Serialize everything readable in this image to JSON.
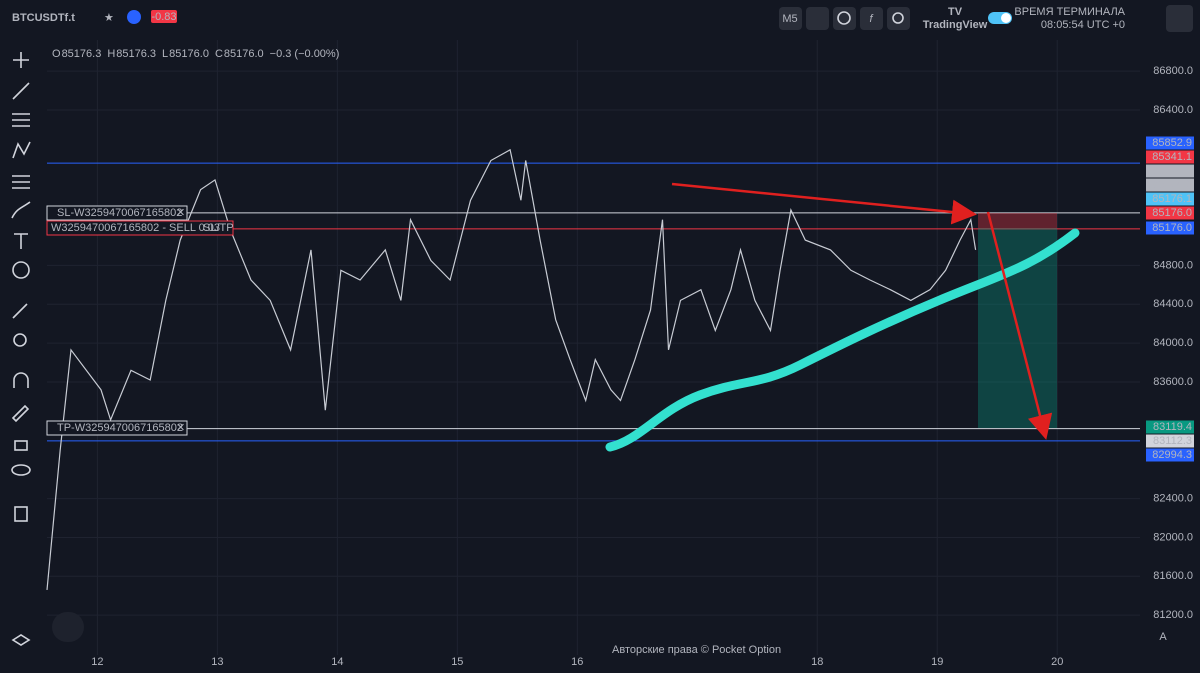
{
  "header": {
    "symbol": "BTCUSDTf.t",
    "change": "-0.83",
    "timeframe": "M5",
    "brand": "TradingView",
    "time_label": "ВРЕМЯ ТЕРМИНАЛА",
    "time": "08:05:54 UTC +0"
  },
  "ohlc": [
    {
      "key": "O",
      "value": "85176.3"
    },
    {
      "key": "H",
      "value": "85176.3"
    },
    {
      "key": "L",
      "value": "85176.0"
    },
    {
      "key": "C",
      "value": "85176.0"
    },
    {
      "key": "",
      "value": "−0.3 (−0.00%)"
    }
  ],
  "orders": {
    "sl": "SL-W3259470067165802",
    "entry": "W3259470067165802 - SELL 0.03",
    "sltp": "SL/TP",
    "tp": "TP-W3259470067165802"
  },
  "price_labels": [
    {
      "label": "85852.9",
      "color": "#2962ff"
    },
    {
      "label": "85341.1",
      "color": "#f23645"
    },
    {
      "label": "85326.7",
      "color": "#b2b5be"
    },
    {
      "label": "85176.2",
      "color": "#b2b5be"
    },
    {
      "label": "85176.1",
      "color": "#4fc3f7"
    },
    {
      "label": "85176.0",
      "color": "#f23645"
    },
    {
      "label": "85176.0",
      "color": "#2962ff"
    },
    {
      "label": "83119.4",
      "color": "#089981"
    },
    {
      "label": "83112.3",
      "color": "#d1d4dc"
    },
    {
      "label": "82994.3",
      "color": "#2962ff"
    }
  ],
  "watermark": "Авторские права © Pocket Option",
  "scale_button": "A",
  "chart_data": {
    "type": "line",
    "color": "#c8ccd4",
    "grid": true,
    "x": [
      11.58,
      11.69,
      11.78,
      12.03,
      12.11,
      12.28,
      12.44,
      12.57,
      12.69,
      12.86,
      12.98,
      13.11,
      13.28,
      13.44,
      13.61,
      13.78,
      13.9,
      14.03,
      14.19,
      14.4,
      14.53,
      14.61,
      14.78,
      14.94,
      15.11,
      15.28,
      15.44,
      15.53,
      15.57,
      15.69,
      15.82,
      15.94,
      16.07,
      16.15,
      16.28,
      16.36,
      16.48,
      16.61,
      16.71,
      16.76,
      16.86,
      17.03,
      17.15,
      17.28,
      17.36,
      17.48,
      17.61,
      17.69,
      17.78,
      17.9,
      18.11,
      18.28,
      18.44,
      18.61,
      18.78,
      18.94,
      19.07,
      19.19,
      19.28,
      19.32
    ],
    "values": [
      81460,
      82900,
      83930,
      83520,
      83210,
      83720,
      83620,
      84440,
      85060,
      85580,
      85680,
      85160,
      84650,
      84440,
      83930,
      84960,
      83310,
      84750,
      84650,
      84960,
      84440,
      85270,
      84850,
      84650,
      85470,
      85880,
      85990,
      85470,
      85880,
      85060,
      84240,
      83830,
      83410,
      83830,
      83520,
      83410,
      83830,
      84340,
      85270,
      83930,
      84440,
      84550,
      84130,
      84550,
      84960,
      84440,
      84130,
      84750,
      85370,
      85060,
      84960,
      84750,
      84650,
      84550,
      84440,
      84550,
      84750,
      85060,
      85270,
      84960
    ],
    "xlim": [
      11.58,
      20.69
    ],
    "xticks": [
      12,
      13,
      14,
      15,
      16,
      18,
      19,
      20
    ],
    "ylim": [
      80790,
      87120
    ],
    "yticks": [
      {
        "value": 86800,
        "label": "86800.0"
      },
      {
        "value": 86400,
        "label": "86400.0"
      },
      {
        "value": 84800,
        "label": "84800.0"
      },
      {
        "value": 84400,
        "label": "84400.0"
      },
      {
        "value": 84000,
        "label": "84000.0"
      },
      {
        "value": 83600,
        "label": "83600.0"
      },
      {
        "value": 82400,
        "label": "82400.0"
      },
      {
        "value": 82000,
        "label": "82000.0"
      },
      {
        "value": 81600,
        "label": "81600.0"
      },
      {
        "value": 81200,
        "label": "81200.0"
      }
    ],
    "levels": [
      {
        "value": 85852.9,
        "color": "#2962ff"
      },
      {
        "value": 85341.1,
        "color": "#d1d4dc"
      },
      {
        "value": 85176.0,
        "color": "#f23645"
      },
      {
        "value": 83119.4,
        "color": "#d1d4dc"
      },
      {
        "value": 82994.3,
        "color": "#2962ff"
      }
    ]
  }
}
